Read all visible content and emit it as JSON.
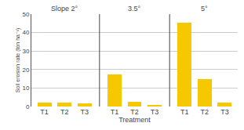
{
  "chart_data": {
    "type": "bar",
    "categories": [
      "T1",
      "T2",
      "T3",
      "T1",
      "T2",
      "T3",
      "T1",
      "T2",
      "T3"
    ],
    "values": [
      2.2,
      2.0,
      1.5,
      17.5,
      2.5,
      0.5,
      45.5,
      15.0,
      2.0
    ],
    "annotations": [
      "Slope 2°",
      "3.5°",
      "5°"
    ],
    "color": "#F5C800",
    "xlabel": "Treatment",
    "ylabel": "Soil erosion rate (ton ha⁻¹)",
    "ylim": [
      0,
      50
    ],
    "yticks": [
      0,
      10,
      20,
      30,
      40,
      50
    ],
    "grid": true
  }
}
